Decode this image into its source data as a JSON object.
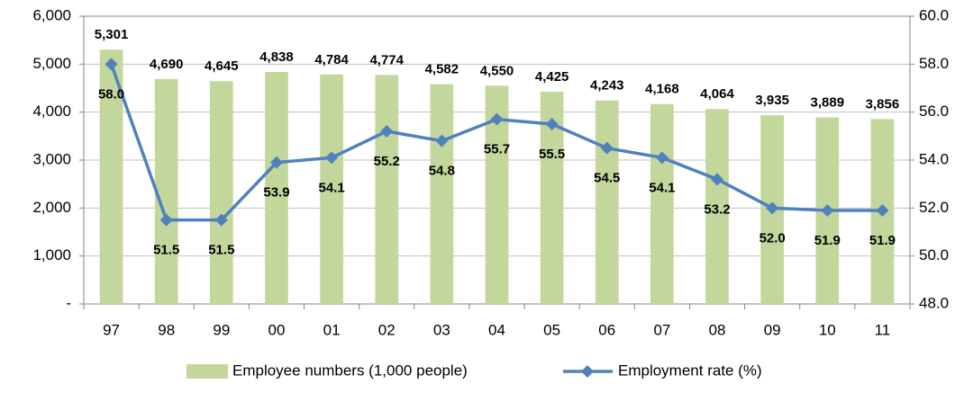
{
  "chart_data": {
    "type": "bar",
    "categories": [
      "97",
      "98",
      "99",
      "00",
      "01",
      "02",
      "03",
      "04",
      "05",
      "06",
      "07",
      "08",
      "09",
      "10",
      "11"
    ],
    "series": [
      {
        "name": "Employee numbers (1,000 people)",
        "color": "#c3d69b",
        "values": [
          5301,
          4690,
          4645,
          4838,
          4784,
          4774,
          4582,
          4550,
          4425,
          4243,
          4168,
          4064,
          3935,
          3889,
          3856
        ],
        "value_labels": [
          "5,301",
          "4,690",
          "4,645",
          "4,838",
          "4,784",
          "4,774",
          "4,582",
          "4,550",
          "4,425",
          "4,243",
          "4,168",
          "4,064",
          "3,935",
          "3,889",
          "3,856"
        ]
      },
      {
        "name": "Employment rate (%)",
        "color": "#4f81bd",
        "type": "line",
        "axis": "y2",
        "values": [
          58.0,
          51.5,
          51.5,
          53.9,
          54.1,
          55.2,
          54.8,
          55.7,
          55.5,
          54.5,
          54.1,
          53.2,
          52.0,
          51.9,
          51.9
        ],
        "value_labels": [
          "58.0",
          "51.5",
          "51.5",
          "53.9",
          "54.1",
          "55.2",
          "54.8",
          "55.7",
          "55.5",
          "54.5",
          "54.1",
          "53.2",
          "52.0",
          "51.9",
          "51.9"
        ]
      }
    ],
    "ylim": [
      0,
      6000
    ],
    "yticks": [
      {
        "value": 0,
        "label": "-"
      },
      {
        "value": 1000,
        "label": "1,000"
      },
      {
        "value": 2000,
        "label": "2,000"
      },
      {
        "value": 3000,
        "label": "3,000"
      },
      {
        "value": 4000,
        "label": "4,000"
      },
      {
        "value": 5000,
        "label": "5,000"
      },
      {
        "value": 6000,
        "label": "6,000"
      }
    ],
    "y2lim": [
      48,
      60
    ],
    "y2ticks": [
      {
        "value": 48,
        "label": "48.0"
      },
      {
        "value": 50,
        "label": "50.0"
      },
      {
        "value": 52,
        "label": "52.0"
      },
      {
        "value": 54,
        "label": "54.0"
      },
      {
        "value": 56,
        "label": "56.0"
      },
      {
        "value": 58,
        "label": "58.0"
      },
      {
        "value": 60,
        "label": "60.0"
      }
    ],
    "grid": true
  }
}
